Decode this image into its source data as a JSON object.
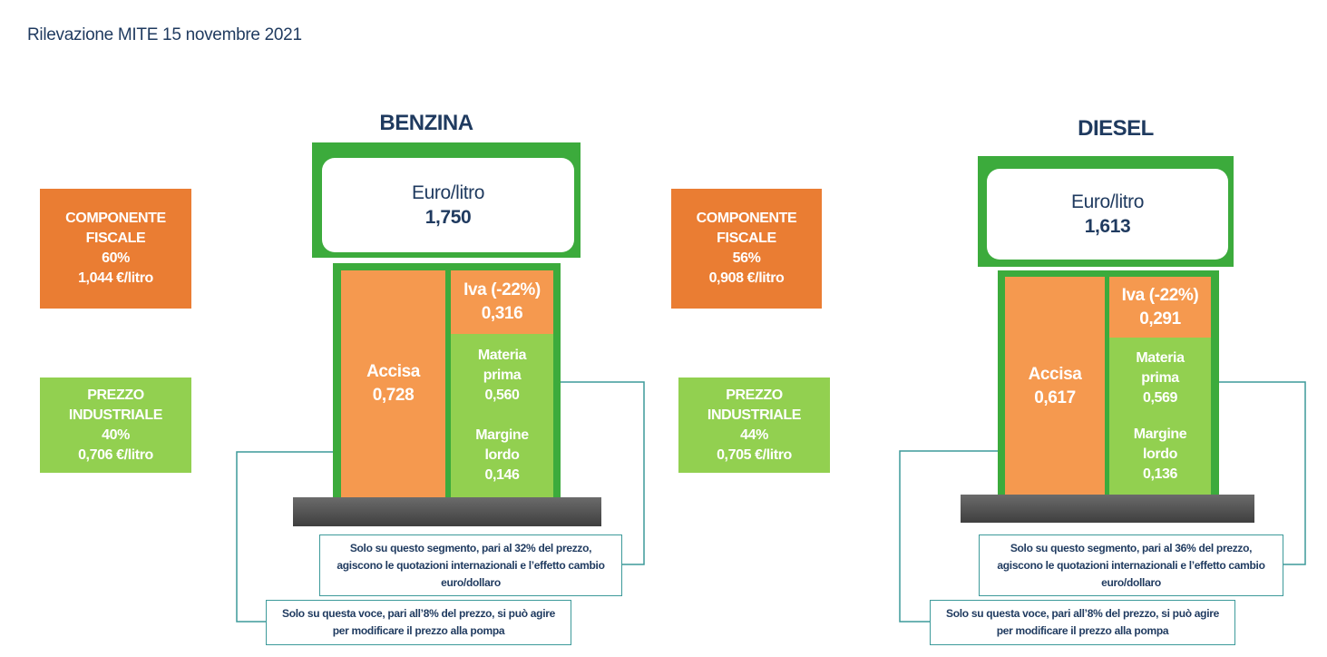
{
  "title": "Rilevazione MITE 15 novembre 2021",
  "colors": {
    "orange": "#ea7d33",
    "green": "#92d050",
    "pump_green": "#3cab3c",
    "text_navy": "#1f3a5f",
    "line_teal": "#3d9a9a"
  },
  "benzina": {
    "heading": "BENZINA",
    "screen_label": "Euro/litro",
    "price": "1,750",
    "fiscal": {
      "l1": "COMPONENTE",
      "l2": "FISCALE",
      "pct": "60%",
      "amount": "1,044 €/litro"
    },
    "industrial": {
      "l1": "PREZZO",
      "l2": "INDUSTRIALE",
      "pct": "40%",
      "amount": "0,706 €/litro"
    },
    "accisa": {
      "label": "Accisa",
      "value": "0,728"
    },
    "iva": {
      "label": "Iva (-22%)",
      "value": "0,316"
    },
    "materia": {
      "l1": "Materia",
      "l2": "prima",
      "value": "0,560"
    },
    "margine": {
      "l1": "Margine",
      "l2": "lordo",
      "value": "0,146"
    },
    "note1": {
      "l1": "Solo su questo segmento, pari al 32% del prezzo,",
      "l2": "agiscono le quotazioni internazionali e l’effetto cambio",
      "l3": "euro/dollaro"
    },
    "note2": {
      "l1": "Solo su questa voce, pari all’8% del prezzo, si può agire",
      "l2": "per modificare il prezzo alla pompa"
    }
  },
  "diesel": {
    "heading": "DIESEL",
    "screen_label": "Euro/litro",
    "price": "1,613",
    "fiscal": {
      "l1": "COMPONENTE",
      "l2": "FISCALE",
      "pct": "56%",
      "amount": "0,908 €/litro"
    },
    "industrial": {
      "l1": "PREZZO",
      "l2": "INDUSTRIALE",
      "pct": "44%",
      "amount": "0,705 €/litro"
    },
    "accisa": {
      "label": "Accisa",
      "value": "0,617"
    },
    "iva": {
      "label": "Iva (-22%)",
      "value": "0,291"
    },
    "materia": {
      "l1": "Materia",
      "l2": "prima",
      "value": "0,569"
    },
    "margine": {
      "l1": "Margine",
      "l2": "lordo",
      "value": "0,136"
    },
    "note1": {
      "l1": "Solo su questo segmento, pari al 36% del prezzo,",
      "l2": "agiscono le quotazioni internazionali e l’effetto cambio",
      "l3": "euro/dollaro"
    },
    "note2": {
      "l1": "Solo su questa voce, pari all’8% del prezzo, si può agire",
      "l2": "per modificare il prezzo alla pompa"
    }
  }
}
